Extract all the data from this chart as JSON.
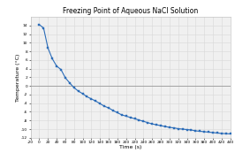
{
  "title": "Freezing Point of Aqueous NaCl Solution",
  "xlabel": "Time (s)",
  "ylabel": "Temperature (°C)",
  "xlim": [
    -20,
    440
  ],
  "ylim": [
    -12,
    16
  ],
  "xticks": [
    -20,
    0,
    20,
    40,
    60,
    80,
    100,
    120,
    140,
    160,
    180,
    200,
    220,
    240,
    260,
    280,
    300,
    320,
    340,
    360,
    380,
    400,
    420,
    440
  ],
  "yticks": [
    -12,
    -10,
    -8,
    -6,
    -4,
    -2,
    0,
    2,
    4,
    6,
    8,
    10,
    12,
    14
  ],
  "line_color": "#2b6cb8",
  "marker_color": "#2b6cb8",
  "grid_color": "#d8d8d8",
  "zero_line_color": "#999999",
  "background_color": "#ffffff",
  "plot_bg_color": "#f0f0f0",
  "x_data": [
    0,
    10,
    20,
    30,
    40,
    50,
    60,
    70,
    80,
    90,
    100,
    110,
    120,
    130,
    140,
    150,
    160,
    170,
    180,
    190,
    200,
    210,
    220,
    230,
    240,
    250,
    260,
    270,
    280,
    290,
    300,
    310,
    320,
    330,
    340,
    350,
    360,
    370,
    380,
    390,
    400,
    410,
    420,
    430,
    440
  ],
  "y_data": [
    14.2,
    13.4,
    8.8,
    6.3,
    4.6,
    3.8,
    1.9,
    0.7,
    -0.4,
    -1.2,
    -1.8,
    -2.5,
    -3.0,
    -3.5,
    -4.1,
    -4.7,
    -5.1,
    -5.7,
    -6.2,
    -6.7,
    -7.0,
    -7.3,
    -7.6,
    -7.9,
    -8.2,
    -8.5,
    -8.8,
    -9.0,
    -9.2,
    -9.4,
    -9.6,
    -9.7,
    -9.9,
    -10.0,
    -10.1,
    -10.2,
    -10.4,
    -10.5,
    -10.6,
    -10.7,
    -10.8,
    -10.9,
    -11.0,
    -11.05,
    -11.1
  ],
  "title_fontsize": 5.5,
  "axis_label_fontsize": 4.5,
  "tick_fontsize": 3.2
}
